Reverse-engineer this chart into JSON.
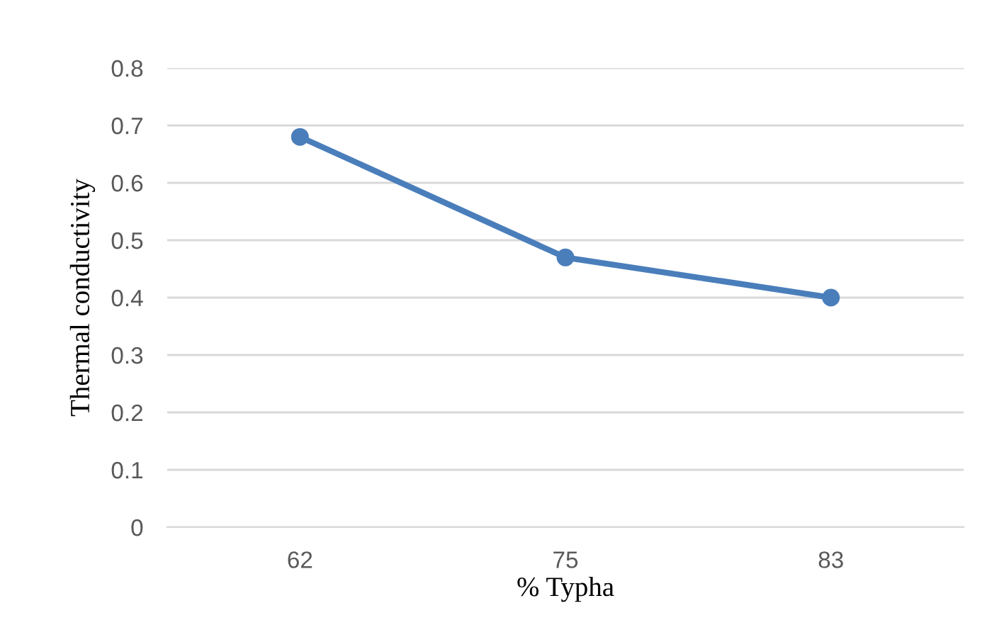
{
  "chart_data": {
    "type": "line",
    "xlabel": "% Typha",
    "ylabel": "Thermal conductivity",
    "categories": [
      "62",
      "75",
      "83"
    ],
    "series": [
      {
        "color": "#4a7ebb",
        "values": [
          0.68,
          0.47,
          0.4
        ]
      }
    ],
    "ylim": [
      0,
      0.8
    ],
    "yticks": [
      0,
      0.1,
      0.2,
      0.3,
      0.4,
      0.5,
      0.6,
      0.7,
      0.8
    ],
    "grid": "y",
    "marker": "circle",
    "line_style": "solid"
  }
}
